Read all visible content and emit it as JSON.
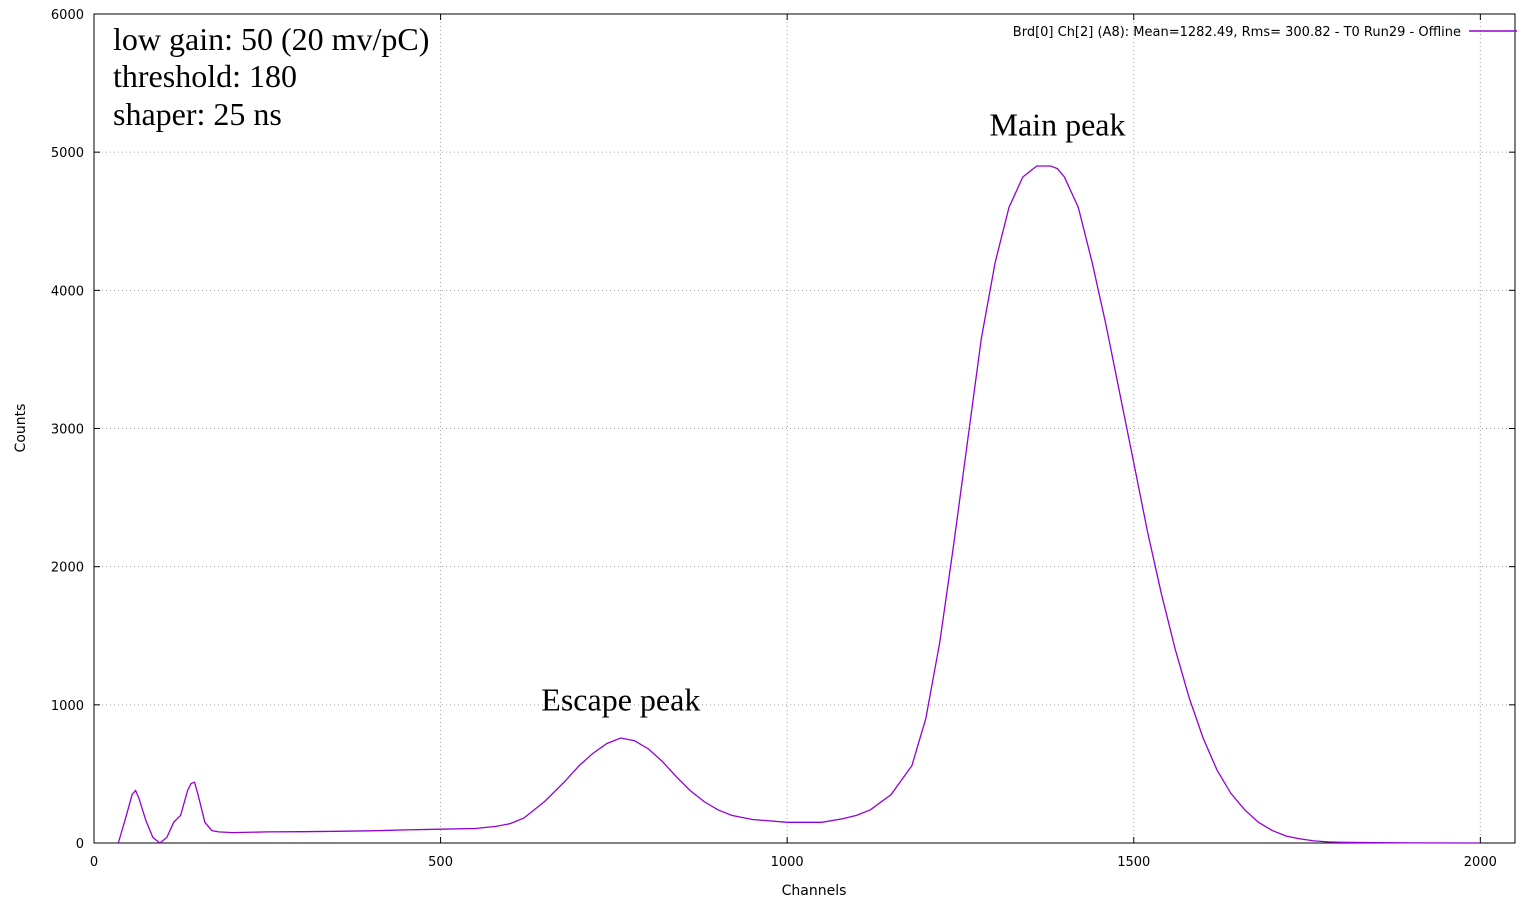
{
  "chart_data": {
    "type": "line",
    "xlabel": "Channels",
    "ylabel": "Counts",
    "xlim": [
      0,
      2050
    ],
    "ylim": [
      0,
      6000
    ],
    "grid": true,
    "legend_position": "top-right",
    "xticks": [
      0,
      500,
      1000,
      1500,
      2000
    ],
    "yticks": [
      0,
      1000,
      2000,
      3000,
      4000,
      5000,
      6000
    ],
    "annotations": [
      {
        "text": "low gain: 50 (20 mv/pC)"
      },
      {
        "text": "threshold: 180"
      },
      {
        "text": "shaper: 25 ns"
      },
      {
        "text": "Main peak",
        "x": 1390,
        "y": 5120
      },
      {
        "text": "Escape peak",
        "x": 760,
        "y": 960
      }
    ],
    "series": [
      {
        "name": "Brd[0] Ch[2] (A8): Mean=1282.49, Rms= 300.82 - T0 Run29 - Offline",
        "color": "#9400d3",
        "x": [
          35,
          45,
          55,
          60,
          65,
          75,
          85,
          95,
          105,
          115,
          125,
          135,
          140,
          145,
          150,
          160,
          170,
          180,
          200,
          250,
          300,
          350,
          400,
          450,
          500,
          550,
          580,
          600,
          620,
          650,
          680,
          700,
          720,
          740,
          760,
          780,
          800,
          820,
          840,
          860,
          880,
          900,
          920,
          950,
          1000,
          1050,
          1080,
          1100,
          1120,
          1150,
          1180,
          1200,
          1220,
          1240,
          1260,
          1280,
          1300,
          1320,
          1340,
          1360,
          1380,
          1390,
          1400,
          1420,
          1440,
          1460,
          1480,
          1500,
          1520,
          1540,
          1560,
          1580,
          1600,
          1620,
          1640,
          1660,
          1680,
          1700,
          1720,
          1740,
          1760,
          1780,
          1800,
          1850,
          1900,
          2000
        ],
        "y": [
          0,
          170,
          350,
          380,
          320,
          160,
          40,
          0,
          40,
          150,
          200,
          380,
          430,
          440,
          350,
          150,
          90,
          80,
          75,
          80,
          82,
          85,
          88,
          95,
          100,
          105,
          120,
          140,
          180,
          300,
          450,
          560,
          650,
          720,
          760,
          740,
          680,
          590,
          480,
          380,
          300,
          240,
          200,
          170,
          150,
          150,
          175,
          200,
          240,
          350,
          560,
          900,
          1450,
          2150,
          2900,
          3650,
          4200,
          4600,
          4820,
          4900,
          4900,
          4880,
          4820,
          4600,
          4200,
          3750,
          3250,
          2750,
          2250,
          1800,
          1400,
          1050,
          760,
          530,
          360,
          240,
          150,
          90,
          50,
          30,
          15,
          8,
          5,
          2,
          1,
          0
        ]
      }
    ]
  }
}
